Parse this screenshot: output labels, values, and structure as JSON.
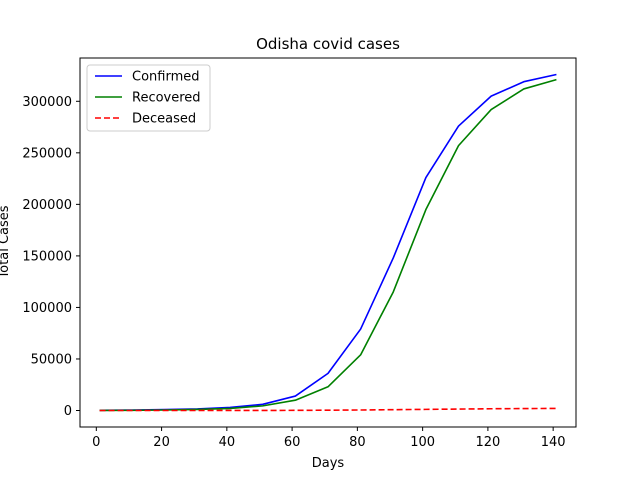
{
  "chart_data": {
    "type": "line",
    "title": "Odisha covid cases",
    "xlabel": "Days",
    "ylabel": "Total Cases",
    "xlim": [
      -5,
      147
    ],
    "ylim": [
      -16000,
      342000
    ],
    "xticks": [
      0,
      20,
      40,
      60,
      80,
      100,
      120,
      140
    ],
    "yticks": [
      0,
      50000,
      100000,
      150000,
      200000,
      250000,
      300000
    ],
    "grid": false,
    "legend_position": "top-left",
    "x": [
      1,
      11,
      21,
      31,
      41,
      51,
      61,
      71,
      81,
      91,
      101,
      111,
      121,
      131,
      141
    ],
    "series": [
      {
        "name": "Confirmed",
        "color": "#0000ff",
        "linestyle": "solid",
        "values": [
          200,
          500,
          900,
          1500,
          3000,
          6000,
          14000,
          36000,
          79000,
          148000,
          226000,
          276000,
          305000,
          319000,
          326000
        ]
      },
      {
        "name": "Recovered",
        "color": "#008000",
        "linestyle": "solid",
        "values": [
          50,
          200,
          500,
          1000,
          2000,
          4500,
          10000,
          23000,
          54000,
          115000,
          195000,
          257000,
          292000,
          312000,
          321000
        ]
      },
      {
        "name": "Deceased",
        "color": "#ff0000",
        "linestyle": "dashed",
        "values": [
          0,
          5,
          10,
          20,
          40,
          80,
          150,
          300,
          500,
          800,
          1100,
          1400,
          1700,
          1900,
          2000
        ]
      }
    ]
  }
}
